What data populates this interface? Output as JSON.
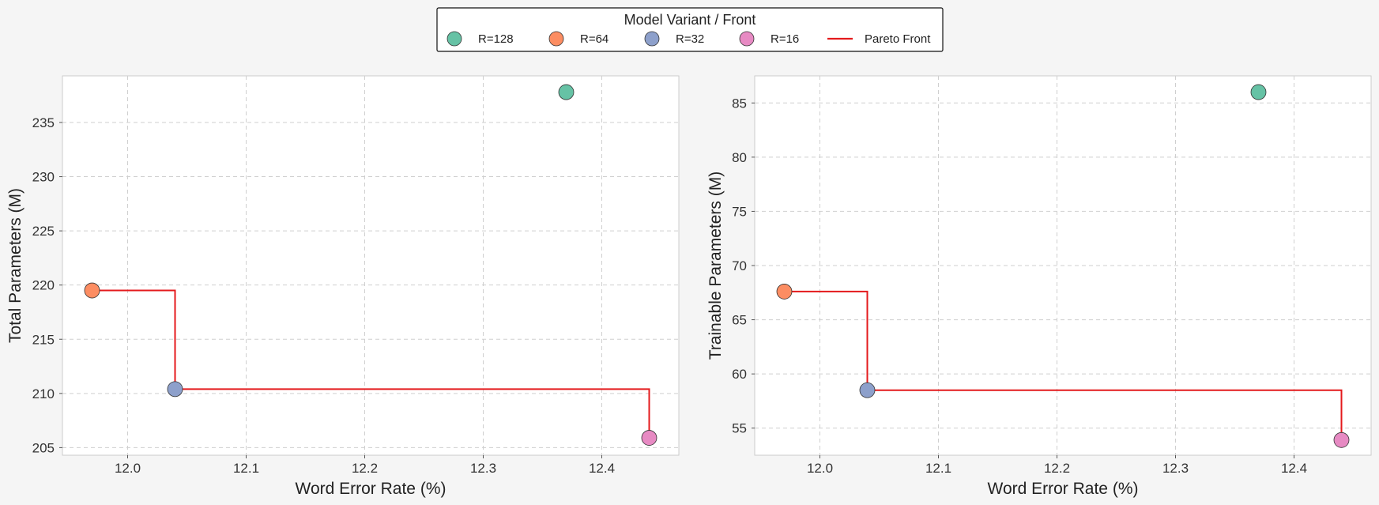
{
  "legend": {
    "title": "Model Variant / Front",
    "items": [
      {
        "label": "R=128",
        "kind": "marker",
        "color": "#66c2a5"
      },
      {
        "label": "R=64",
        "kind": "marker",
        "color": "#fc8d62"
      },
      {
        "label": "R=32",
        "kind": "marker",
        "color": "#8da0cb"
      },
      {
        "label": "R=16",
        "kind": "marker",
        "color": "#e78ac3"
      },
      {
        "label": "Pareto Front",
        "kind": "line",
        "color": "#e41a1c"
      }
    ]
  },
  "chart_data": [
    {
      "type": "scatter",
      "xlabel": "Word Error Rate (%)",
      "ylabel": "Total Parameters (M)",
      "xlim": [
        11.945,
        12.465
      ],
      "ylim": [
        204.3,
        239.3
      ],
      "xticks": [
        12.0,
        12.1,
        12.2,
        12.3,
        12.4
      ],
      "yticks": [
        205,
        210,
        215,
        220,
        225,
        230,
        235
      ],
      "xtick_decimals": 1,
      "grid": true,
      "series": [
        {
          "name": "R=128",
          "color": "#66c2a5",
          "points": [
            [
              12.37,
              237.8
            ]
          ]
        },
        {
          "name": "R=64",
          "color": "#fc8d62",
          "points": [
            [
              11.97,
              219.5
            ]
          ]
        },
        {
          "name": "R=32",
          "color": "#8da0cb",
          "points": [
            [
              12.04,
              210.4
            ]
          ]
        },
        {
          "name": "R=16",
          "color": "#e78ac3",
          "points": [
            [
              12.44,
              205.9
            ]
          ]
        }
      ],
      "pareto_front": {
        "name": "Pareto Front",
        "color": "#e41a1c",
        "step": "post",
        "points": [
          [
            11.97,
            219.5
          ],
          [
            12.04,
            210.4
          ],
          [
            12.44,
            205.9
          ]
        ]
      }
    },
    {
      "type": "scatter",
      "xlabel": "Word Error Rate (%)",
      "ylabel": "Trainable Parameters (M)",
      "xlim": [
        11.945,
        12.465
      ],
      "ylim": [
        52.5,
        87.5
      ],
      "xticks": [
        12.0,
        12.1,
        12.2,
        12.3,
        12.4
      ],
      "yticks": [
        55,
        60,
        65,
        70,
        75,
        80,
        85
      ],
      "xtick_decimals": 1,
      "grid": true,
      "series": [
        {
          "name": "R=128",
          "color": "#66c2a5",
          "points": [
            [
              12.37,
              86.0
            ]
          ]
        },
        {
          "name": "R=64",
          "color": "#fc8d62",
          "points": [
            [
              11.97,
              67.6
            ]
          ]
        },
        {
          "name": "R=32",
          "color": "#8da0cb",
          "points": [
            [
              12.04,
              58.5
            ]
          ]
        },
        {
          "name": "R=16",
          "color": "#e78ac3",
          "points": [
            [
              12.44,
              53.9
            ]
          ]
        }
      ],
      "pareto_front": {
        "name": "Pareto Front",
        "color": "#e41a1c",
        "step": "post",
        "points": [
          [
            11.97,
            67.6
          ],
          [
            12.04,
            58.5
          ],
          [
            12.44,
            53.9
          ]
        ]
      }
    }
  ]
}
